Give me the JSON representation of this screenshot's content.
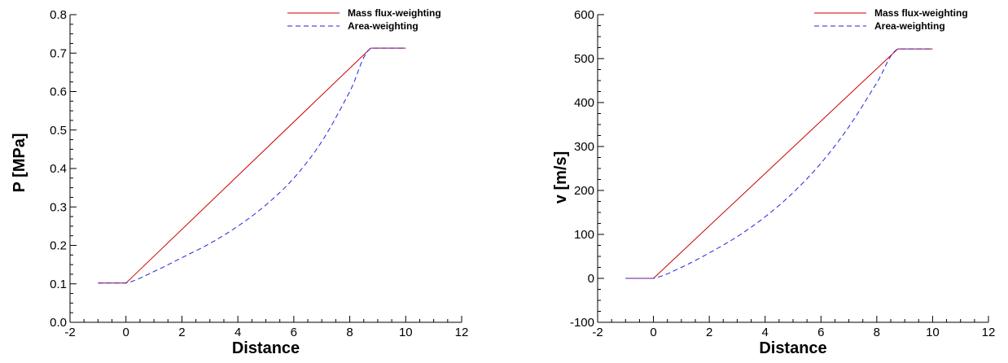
{
  "chart_data": [
    {
      "type": "line",
      "title": "",
      "xlabel": "Distance",
      "ylabel": "P [MPa]",
      "xlim": [
        -2,
        12
      ],
      "ylim": [
        0.0,
        0.8
      ],
      "xticks": [
        -2,
        0,
        2,
        4,
        6,
        8,
        10,
        12
      ],
      "yticks": [
        0.0,
        0.1,
        0.2,
        0.3,
        0.4,
        0.5,
        0.6,
        0.7,
        0.8
      ],
      "xtick_labels": [
        "-2",
        "0",
        "2",
        "4",
        "6",
        "8",
        "10",
        "12"
      ],
      "ytick_labels": [
        "0.0",
        "0.1",
        "0.2",
        "0.3",
        "0.4",
        "0.5",
        "0.6",
        "0.7",
        "0.8"
      ],
      "grid": false,
      "legend": "top-right",
      "series": [
        {
          "name": "Mass flux-weighting",
          "color": "#cc0000",
          "style": "solid",
          "x": [
            -1,
            0,
            8.75,
            10
          ],
          "y": [
            0.102,
            0.102,
            0.713,
            0.713
          ]
        },
        {
          "name": "Area-weighting",
          "color": "#2222dd",
          "style": "dashed",
          "x": [
            -1,
            0,
            1,
            2,
            3,
            4,
            5,
            6,
            7,
            8,
            8.75,
            10
          ],
          "y": [
            0.102,
            0.102,
            0.132,
            0.168,
            0.205,
            0.25,
            0.305,
            0.375,
            0.47,
            0.6,
            0.713,
            0.713
          ]
        }
      ]
    },
    {
      "type": "line",
      "title": "",
      "xlabel": "Distance",
      "ylabel": "v [m/s]",
      "xlim": [
        -2,
        12
      ],
      "ylim": [
        -100,
        600
      ],
      "xticks": [
        -2,
        0,
        2,
        4,
        6,
        8,
        10,
        12
      ],
      "yticks": [
        -100,
        0,
        100,
        200,
        300,
        400,
        500,
        600
      ],
      "xtick_labels": [
        "-2",
        "0",
        "2",
        "4",
        "6",
        "8",
        "10",
        "12"
      ],
      "ytick_labels": [
        "-100",
        "0",
        "100",
        "200",
        "300",
        "400",
        "500",
        "600"
      ],
      "grid": false,
      "legend": "top-right",
      "series": [
        {
          "name": "Mass flux-weighting",
          "color": "#cc0000",
          "style": "solid",
          "x": [
            -1,
            0,
            8.75,
            10
          ],
          "y": [
            0,
            0,
            522,
            522
          ]
        },
        {
          "name": "Area-weighting",
          "color": "#2222dd",
          "style": "dashed",
          "x": [
            -1,
            0,
            1,
            2,
            3,
            4,
            5,
            6,
            7,
            8,
            8.75,
            10
          ],
          "y": [
            0,
            0,
            25,
            58,
            95,
            140,
            195,
            262,
            345,
            445,
            522,
            522
          ]
        }
      ]
    }
  ]
}
